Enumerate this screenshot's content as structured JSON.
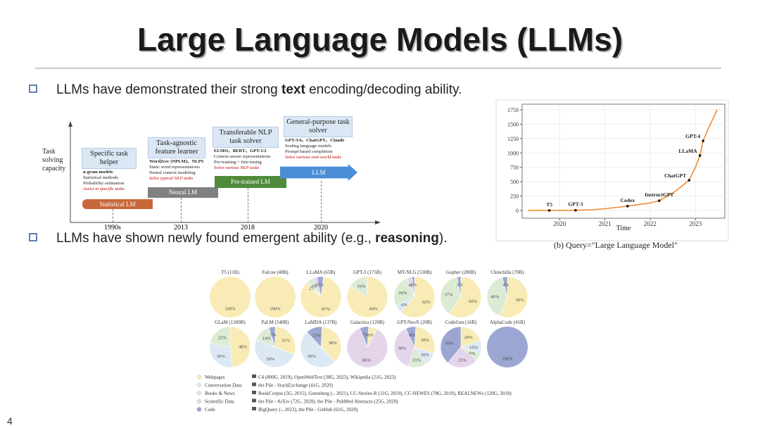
{
  "title": "Large Language Models (LLMs)",
  "bullets": [
    [
      "LLMs have demonstrated their strong ",
      "text",
      " encoding/decoding ability."
    ],
    [
      "LLMs have shown newly found emergent ability (e.g., ",
      "reasoning",
      ")."
    ]
  ],
  "timeline": {
    "axis_label": "Task solving capacity",
    "stages": [
      {
        "title": "Specific task helper",
        "items": [
          "n-gram models",
          "Statistical methods",
          "Probability estimation"
        ],
        "highlight": "Assist in specific tasks",
        "bar": "Statistical LM",
        "year": "1990s",
        "color": "#c8683a"
      },
      {
        "title": "Task-agnostic feature learner",
        "items": [
          "Word2vec (NPLM)、NLPS",
          "Static word representations",
          "Neural context modeling"
        ],
        "highlight": "Solve typical NLP tasks",
        "bar": "Neural LM",
        "year": "2013",
        "color": "#808080"
      },
      {
        "title": "Transferable NLP task solver",
        "items": [
          "ELMO、BERT、GPT-1/2",
          "Context-aware representations",
          "Pre-training + fine-tuning"
        ],
        "highlight": "Solve various NLP tasks",
        "bar": "Pre-trained LM",
        "year": "2018",
        "color": "#4e8a3a"
      },
      {
        "title": "General-purpose task solver",
        "items": [
          "GPT-3/4、ChatGPT、Claude",
          "Scaling language models",
          "Prompt based completion"
        ],
        "highlight": "Solve various real-world tasks",
        "bar": "LLM",
        "year": "2020",
        "color": "#4a8fd6"
      }
    ]
  },
  "chart_data": {
    "type": "line",
    "xlabel": "Time",
    "caption": "(b) Query=\"Large Language Model\"",
    "x": [
      2019.3,
      2019.77,
      2020,
      2020.35,
      2020.7,
      2021,
      2021.5,
      2022,
      2022.2,
      2022.5,
      2022.86,
      2023,
      2023.1,
      2023.17,
      2023.3,
      2023.48
    ],
    "series": [
      {
        "color": "#ef8a2e",
        "values": [
          0,
          1,
          2,
          3,
          12,
          30,
          75,
          130,
          170,
          300,
          525,
          750,
          955,
          1210,
          1450,
          1750
        ]
      }
    ],
    "points": [
      {
        "label": "T5",
        "x": 2019.77,
        "y": 1
      },
      {
        "label": "GPT-3",
        "x": 2020.35,
        "y": 3
      },
      {
        "label": "Codex",
        "x": 2021.5,
        "y": 75
      },
      {
        "label": "InstructGPT",
        "x": 2022.2,
        "y": 170
      },
      {
        "label": "ChatGPT",
        "x": 2022.86,
        "y": 525
      },
      {
        "label": "LLaMA",
        "x": 2023.1,
        "y": 955
      },
      {
        "label": "GPT-4",
        "x": 2023.17,
        "y": 1210
      }
    ],
    "xlim": [
      2019.17,
      2023.65
    ],
    "ylim": [
      -135,
      1848
    ],
    "xticks": [
      2020,
      2021,
      2022,
      2023
    ],
    "yticks": [
      0,
      250,
      500,
      750,
      1000,
      1250,
      1500,
      1750
    ],
    "grid": true
  },
  "pies": {
    "categories": [
      {
        "name": "Webpages",
        "color": "#f8ebb5",
        "sources": "C4 (800G, 2019), OpenWebText (38G, 2023), Wikipedia (21G, 2023)"
      },
      {
        "name": "Conversation Data",
        "color": "#dce8f4",
        "sources": "the Pile - StackExchange (41G, 2020)"
      },
      {
        "name": "Books & News",
        "color": "#dcebd3",
        "sources": "BookCorpus (5G, 2015), Gutenberg (-, 2021), CC-Stories-R (31G, 2019), CC-NEWES (78G, 2019), REALNEWs (120G, 2019)"
      },
      {
        "name": "Scientific Data",
        "color": "#e4d5eb",
        "sources": "the Pile - ArXiv (72G, 2020), the Pile - PubMed Abstracts (25G, 2020)"
      },
      {
        "name": "Code",
        "color": "#9ba7d2",
        "sources": "BigQuery (-, 2023), the Pile - GitHub (61G, 2020)"
      }
    ],
    "models": [
      {
        "name": "T5 (11B)",
        "values": [
          100,
          null,
          null,
          null,
          null
        ],
        "value_labels": [
          "100%",
          null,
          null,
          null,
          null
        ]
      },
      {
        "name": "Falcon (40B)",
        "values": [
          100,
          null,
          null,
          null,
          null
        ],
        "value_labels": [
          "100%",
          null,
          null,
          null,
          null
        ]
      },
      {
        "name": "LLaMA (65B)",
        "values": [
          87,
          2,
          5,
          3,
          5
        ],
        "value_labels": [
          "87%",
          "2%",
          "5%",
          "3%",
          "5%"
        ]
      },
      {
        "name": "GPT-3 (175B)",
        "values": [
          84,
          null,
          16,
          null,
          null
        ],
        "value_labels": [
          "84%",
          null,
          "16%",
          null,
          null
        ]
      },
      {
        "name": "MT-NLG (530B)",
        "values": [
          62,
          6,
          26,
          4,
          2
        ],
        "value_labels": [
          "62%",
          "6%",
          "26%",
          "4%",
          "2%"
        ]
      },
      {
        "name": "Gopher (280B)",
        "values": [
          60,
          null,
          37,
          null,
          3
        ],
        "value_labels": [
          "60%",
          null,
          "37%",
          null,
          "3%"
        ]
      },
      {
        "name": "Chinchilla (70B)",
        "values": [
          56,
          null,
          40,
          null,
          4
        ],
        "value_labels": [
          "56%",
          null,
          "40%",
          null,
          "4%"
        ]
      },
      {
        "name": "GLaM (1200B)",
        "values": [
          48,
          30,
          22,
          null,
          null
        ],
        "value_labels": [
          "48%",
          "30%",
          "22%",
          null,
          null
        ]
      },
      {
        "name": "PaLM (540B)",
        "values": [
          31,
          50,
          14,
          null,
          5
        ],
        "value_labels": [
          "31%",
          "50%",
          "14%",
          null,
          "5%"
        ]
      },
      {
        "name": "LaMDA (137B)",
        "values": [
          38,
          50,
          null,
          null,
          13
        ],
        "value_labels": [
          "38%",
          "50%",
          null,
          null,
          "13%"
        ]
      },
      {
        "name": "Galactica (120B)",
        "values": [
          8,
          null,
          null,
          86,
          7
        ],
        "value_labels": [
          "8%",
          null,
          null,
          "86%",
          "7%"
        ]
      },
      {
        "name": "GPT-NeoX (20B)",
        "values": [
          30,
          10,
          15,
          38,
          8
        ],
        "value_labels": [
          "30%",
          "10%",
          "15%",
          "38%",
          "8%"
        ]
      },
      {
        "name": "CodeGen (16B)",
        "values": [
          20,
          10,
          6,
          25,
          39
        ],
        "value_labels": [
          "20%",
          "10%",
          "6%",
          "25%",
          "39%"
        ]
      },
      {
        "name": "AlphaCode (41B)",
        "values": [
          null,
          null,
          null,
          null,
          100
        ],
        "value_labels": [
          null,
          null,
          null,
          null,
          "100%"
        ]
      }
    ]
  },
  "page_number": "4"
}
